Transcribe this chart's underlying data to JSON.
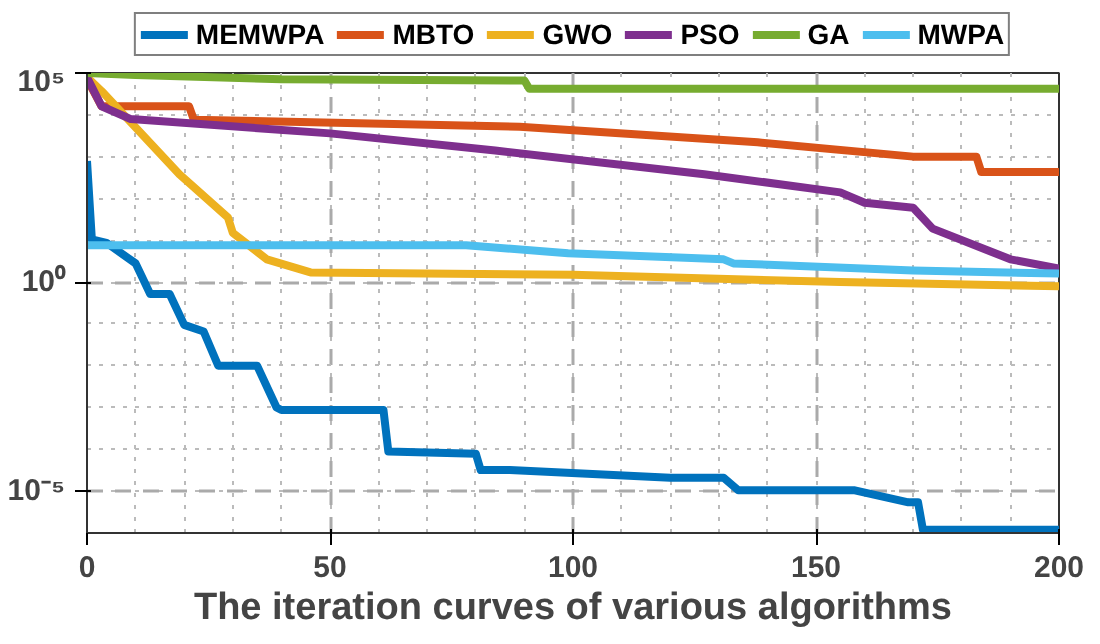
{
  "chart_data": {
    "type": "line",
    "xlabel": "The iteration curves of various algorithms",
    "xlim": [
      0,
      200
    ],
    "xticks": [
      0,
      50,
      100,
      150,
      200
    ],
    "ylim": [
      1e-06,
      100000.0
    ],
    "yticks": [
      {
        "value": 1e-05,
        "label": "10⁻⁵"
      },
      {
        "value": 1,
        "label": "10⁰"
      },
      {
        "value": 100000.0,
        "label": "10⁵"
      }
    ],
    "log": "y",
    "grid": true,
    "legend": "top",
    "line_style": "solid",
    "marker": "none",
    "series": [
      {
        "name": "MEMWPA",
        "color": "#0072bd",
        "x": [
          0,
          1,
          4,
          10,
          13,
          17,
          20,
          24,
          27,
          35,
          39,
          40,
          61,
          62,
          80,
          81,
          87,
          120,
          131,
          134,
          158,
          169,
          171,
          172,
          200
        ],
        "values": [
          790,
          10.5,
          8.7,
          2.8,
          0.52,
          0.52,
          0.095,
          0.066,
          0.01,
          0.01,
          0.001,
          0.00087,
          0.00087,
          8.9e-05,
          7.9e-05,
          3.2e-05,
          3.2e-05,
          2.1e-05,
          2.1e-05,
          1.05e-05,
          1.05e-05,
          5.4e-06,
          5.4e-06,
          1.2e-06,
          1.2e-06
        ]
      },
      {
        "name": "MBTO",
        "color": "#d95319",
        "x": [
          0,
          3,
          21,
          22,
          89,
          138,
          170,
          183,
          184,
          200
        ],
        "values": [
          72000,
          16000,
          16000,
          7600,
          5200,
          2200,
          1000,
          1000,
          430,
          430
        ]
      },
      {
        "name": "GWO",
        "color": "#edb120",
        "x": [
          0,
          3,
          19,
          29,
          30,
          37,
          46,
          100,
          155,
          200
        ],
        "values": [
          79000,
          37000,
          380,
          35,
          15,
          3.5,
          1.7,
          1.5,
          1.0,
          0.79
        ]
      },
      {
        "name": "PSO",
        "color": "#7e2f8e",
        "x": [
          0,
          3,
          9,
          50,
          84,
          127,
          155,
          160,
          170,
          174,
          190,
          200
        ],
        "values": [
          79000,
          16000,
          7900,
          3600,
          1400,
          380,
          140,
          79,
          60,
          19,
          3.5,
          2.1
        ]
      },
      {
        "name": "GA",
        "color": "#77ac30",
        "x": [
          0,
          10,
          40,
          90,
          91,
          200
        ],
        "values": [
          100000,
          89000,
          71000,
          66000,
          42000,
          42000
        ]
      },
      {
        "name": "MWPA",
        "color": "#4dbeee",
        "x": [
          0,
          78,
          99,
          131,
          133,
          170,
          200
        ],
        "values": [
          7.6,
          7.6,
          4.9,
          3.5,
          2.8,
          1.9,
          1.6
        ]
      }
    ]
  }
}
